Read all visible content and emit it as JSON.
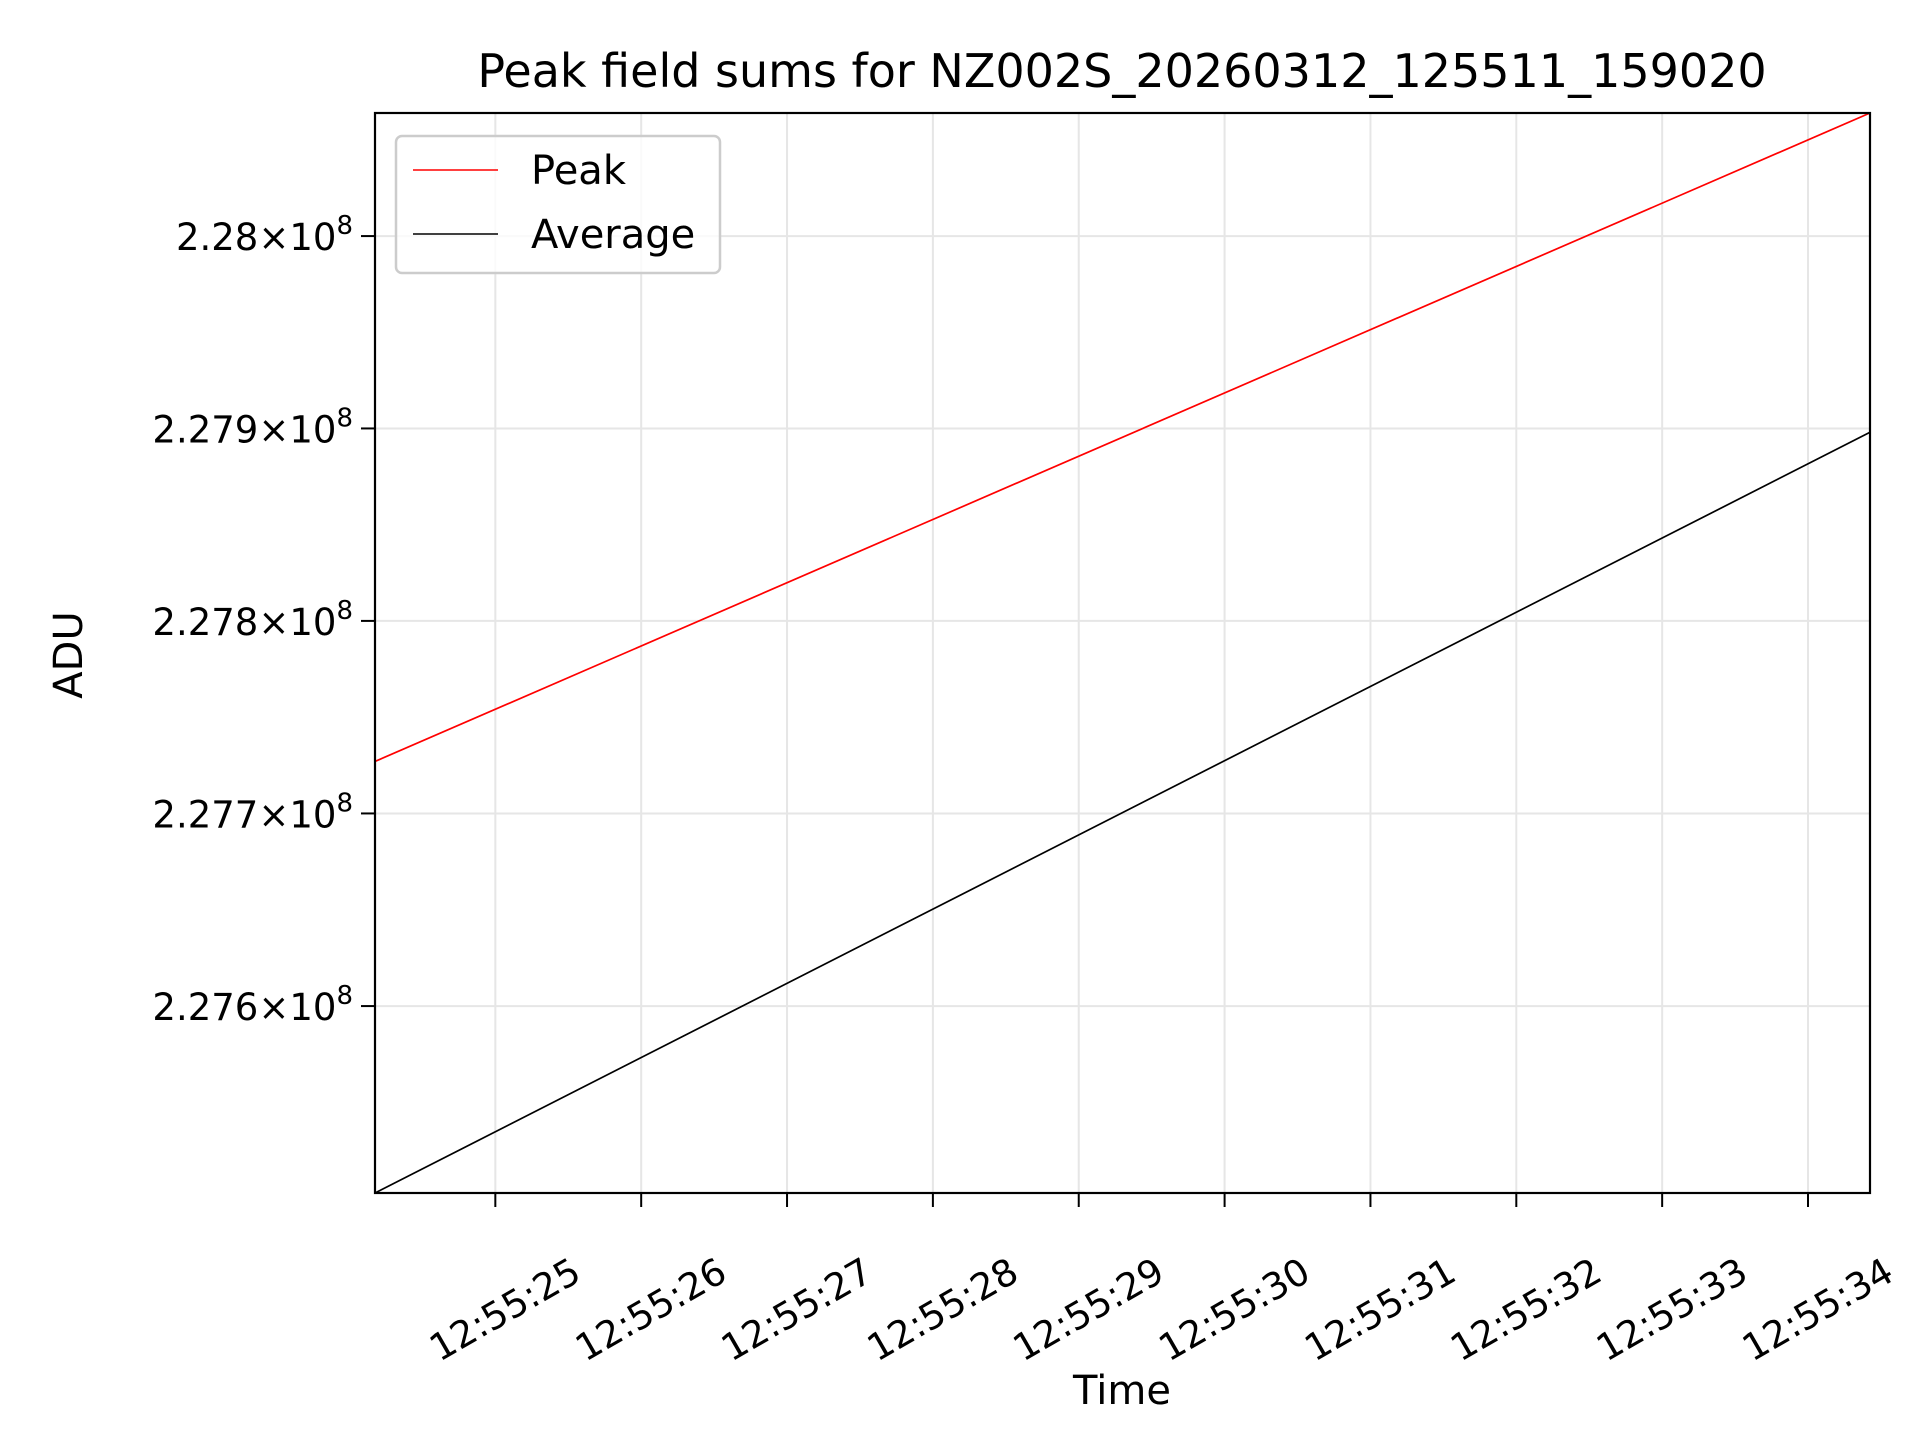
{
  "chart_data": {
    "type": "line",
    "title": "Peak field sums for NZ002S_20260312_125511_159020",
    "xlabel": "Time",
    "ylabel": "ADU",
    "y_scale": "log",
    "grid": true,
    "legend_position": "top-left",
    "xlim": [
      "12:55:24.175",
      "12:55:34.425"
    ],
    "ylim": [
      227503000,
      228064000
    ],
    "x_ticks": [
      "12:55:25",
      "12:55:26",
      "12:55:27",
      "12:55:28",
      "12:55:29",
      "12:55:30",
      "12:55:31",
      "12:55:32",
      "12:55:33",
      "12:55:34"
    ],
    "y_ticks": [
      {
        "value": 227600000,
        "mantissa": "2.276",
        "exponent": "8"
      },
      {
        "value": 227700000,
        "mantissa": "2.277",
        "exponent": "8"
      },
      {
        "value": 227800000,
        "mantissa": "2.278",
        "exponent": "8"
      },
      {
        "value": 227900000,
        "mantissa": "2.279",
        "exponent": "8"
      },
      {
        "value": 228000000,
        "mantissa": "2.28",
        "exponent": "8"
      }
    ],
    "series": [
      {
        "name": "Peak",
        "color": "#ff0000",
        "x": [
          "12:55:24.175",
          "12:55:34.425"
        ],
        "y": [
          227727000,
          228064000
        ]
      },
      {
        "name": "Average",
        "color": "#000000",
        "x": [
          "12:55:24.175",
          "12:55:34.425"
        ],
        "y": [
          227503000,
          227898000
        ]
      }
    ]
  }
}
